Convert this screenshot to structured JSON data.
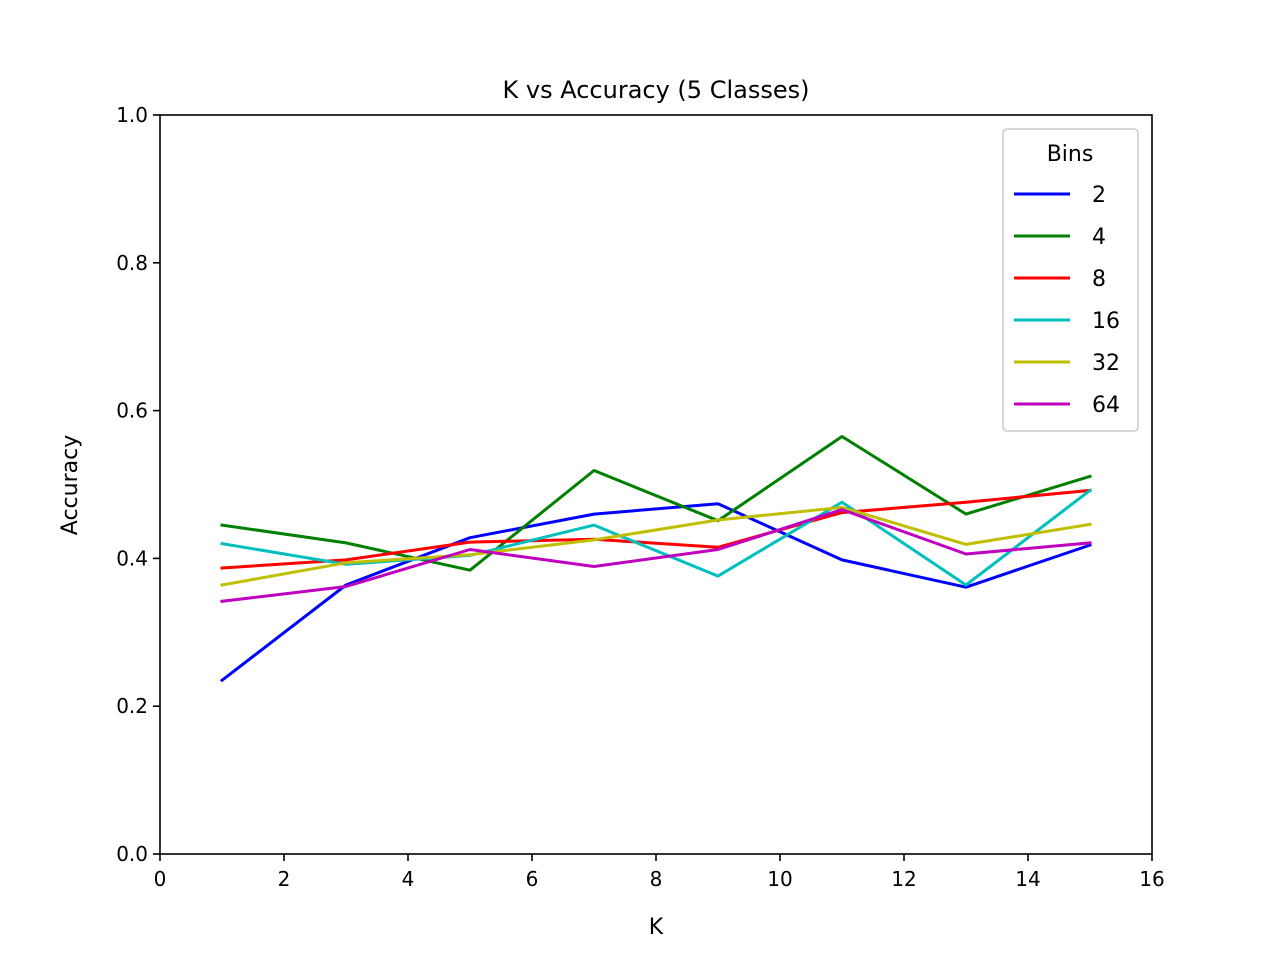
{
  "chart_data": {
    "type": "line",
    "title": "K vs Accuracy (5 Classes)",
    "xlabel": "K",
    "ylabel": "Accuracy",
    "xlim": [
      0,
      16
    ],
    "ylim": [
      0.0,
      1.0
    ],
    "xticks": [
      0,
      2,
      4,
      6,
      8,
      10,
      12,
      14,
      16
    ],
    "xtick_labels": [
      "0",
      "2",
      "4",
      "6",
      "8",
      "10",
      "12",
      "14",
      "16"
    ],
    "yticks": [
      0.0,
      0.2,
      0.4,
      0.6,
      0.8,
      1.0
    ],
    "ytick_labels": [
      "0.0",
      "0.2",
      "0.4",
      "0.6",
      "0.8",
      "1.0"
    ],
    "grid": false,
    "legend": {
      "title": "Bins",
      "position": "top-right"
    },
    "x": [
      1,
      3,
      5,
      7,
      9,
      11,
      13,
      15
    ],
    "series": [
      {
        "name": "2",
        "color": "#0000ff",
        "values": [
          0.235,
          0.364,
          0.428,
          0.46,
          0.474,
          0.398,
          0.361,
          0.418
        ]
      },
      {
        "name": "4",
        "color": "#008000",
        "values": [
          0.445,
          0.421,
          0.384,
          0.519,
          0.451,
          0.565,
          0.46,
          0.511
        ]
      },
      {
        "name": "8",
        "color": "#ff0000",
        "values": [
          0.387,
          0.398,
          0.422,
          0.426,
          0.415,
          0.462,
          0.476,
          0.492
        ]
      },
      {
        "name": "16",
        "color": "#00bfbf",
        "values": [
          0.42,
          0.392,
          0.404,
          0.445,
          0.376,
          0.476,
          0.364,
          0.492
        ]
      },
      {
        "name": "32",
        "color": "#bfbf00",
        "values": [
          0.364,
          0.394,
          0.405,
          0.425,
          0.452,
          0.469,
          0.419,
          0.446
        ]
      },
      {
        "name": "64",
        "color": "#bf00bf",
        "values": [
          0.342,
          0.362,
          0.412,
          0.389,
          0.412,
          0.466,
          0.406,
          0.421
        ]
      }
    ]
  }
}
